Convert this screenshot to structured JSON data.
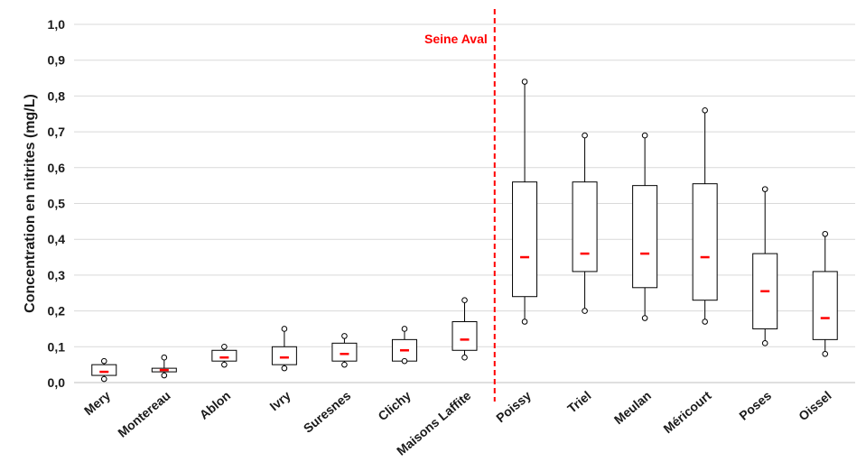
{
  "chart_data": {
    "type": "boxplot",
    "ylabel": "Concentration en nitrites (mg/L)",
    "ylim": [
      0,
      1.0
    ],
    "yticks": [
      "0,0",
      "0,1",
      "0,2",
      "0,3",
      "0,4",
      "0,5",
      "0,6",
      "0,7",
      "0,8",
      "0,9",
      "1,0"
    ],
    "ytick_values": [
      0,
      0.1,
      0.2,
      0.3,
      0.4,
      0.5,
      0.6,
      0.7,
      0.8,
      0.9,
      1.0
    ],
    "grid": true,
    "colors": {
      "box": "#000000",
      "median": "#ff0000",
      "divider": "#ff0000",
      "grid": "#d9d9d9"
    },
    "annotation": {
      "text": "Seine Aval",
      "after_category": "Maisons Laffite"
    },
    "categories": [
      "Mery",
      "Montereau",
      "Ablon",
      "Ivry",
      "Suresnes",
      "Clichy",
      "Maisons Laffite",
      "Poissy",
      "Triel",
      "Meulan",
      "Méricourt",
      "Poses",
      "Oissel"
    ],
    "boxes": [
      {
        "min": 0.01,
        "q1": 0.02,
        "median": 0.03,
        "q3": 0.05,
        "max": 0.06
      },
      {
        "min": 0.02,
        "q1": 0.03,
        "median": 0.035,
        "q3": 0.04,
        "max": 0.07
      },
      {
        "min": 0.05,
        "q1": 0.06,
        "median": 0.07,
        "q3": 0.09,
        "max": 0.1
      },
      {
        "min": 0.04,
        "q1": 0.05,
        "median": 0.07,
        "q3": 0.1,
        "max": 0.15
      },
      {
        "min": 0.05,
        "q1": 0.06,
        "median": 0.08,
        "q3": 0.11,
        "max": 0.13
      },
      {
        "min": 0.06,
        "q1": 0.06,
        "median": 0.09,
        "q3": 0.12,
        "max": 0.15
      },
      {
        "min": 0.07,
        "q1": 0.09,
        "median": 0.12,
        "q3": 0.17,
        "max": 0.23
      },
      {
        "min": 0.17,
        "q1": 0.24,
        "median": 0.35,
        "q3": 0.56,
        "max": 0.84
      },
      {
        "min": 0.2,
        "q1": 0.31,
        "median": 0.36,
        "q3": 0.56,
        "max": 0.69
      },
      {
        "min": 0.18,
        "q1": 0.265,
        "median": 0.36,
        "q3": 0.55,
        "max": 0.69
      },
      {
        "min": 0.17,
        "q1": 0.23,
        "median": 0.35,
        "q3": 0.555,
        "max": 0.76
      },
      {
        "min": 0.11,
        "q1": 0.15,
        "median": 0.255,
        "q3": 0.36,
        "max": 0.54
      },
      {
        "min": 0.08,
        "q1": 0.12,
        "median": 0.18,
        "q3": 0.31,
        "max": 0.415
      }
    ]
  }
}
